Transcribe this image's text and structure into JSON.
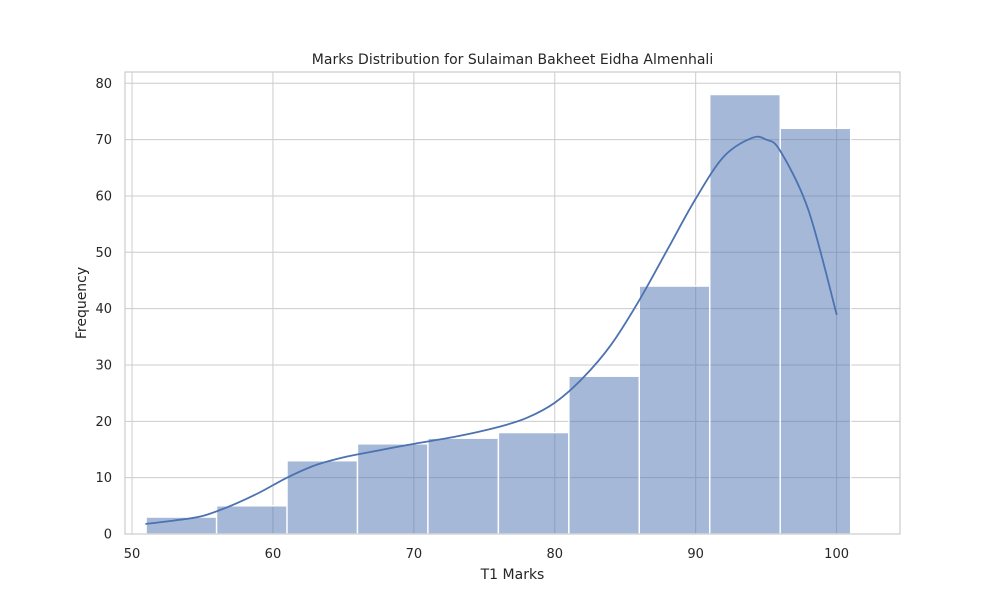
{
  "chart_data": {
    "type": "bar",
    "title": "Marks Distribution for Sulaiman Bakheet Eidha Almenhali",
    "xlabel": "T1 Marks",
    "ylabel": "Frequency",
    "xlim": [
      49.5,
      104.5
    ],
    "ylim": [
      0,
      82
    ],
    "x_ticks": [
      50,
      60,
      70,
      80,
      90,
      100
    ],
    "y_ticks": [
      0,
      10,
      20,
      30,
      40,
      50,
      60,
      70,
      80
    ],
    "grid": true,
    "bins": [
      {
        "start": 51,
        "end": 56,
        "count": 3
      },
      {
        "start": 56,
        "end": 61,
        "count": 5
      },
      {
        "start": 61,
        "end": 66,
        "count": 13
      },
      {
        "start": 66,
        "end": 71,
        "count": 16
      },
      {
        "start": 71,
        "end": 76,
        "count": 17
      },
      {
        "start": 76,
        "end": 81,
        "count": 18
      },
      {
        "start": 81,
        "end": 86,
        "count": 28
      },
      {
        "start": 86,
        "end": 91,
        "count": 44
      },
      {
        "start": 91,
        "end": 96,
        "count": 78
      },
      {
        "start": 96,
        "end": 101,
        "count": 72
      }
    ],
    "kde": {
      "x": [
        51,
        53,
        55,
        57,
        59,
        61,
        63,
        65,
        67,
        70,
        73,
        76,
        78,
        80,
        82,
        84,
        86,
        88,
        90,
        92,
        94,
        95,
        96,
        98,
        100
      ],
      "y": [
        1.8,
        2.4,
        3.2,
        5.0,
        7.3,
        10.0,
        12.2,
        13.6,
        14.6,
        16.0,
        17.3,
        19.0,
        20.6,
        23.3,
        27.7,
        33.6,
        41.5,
        50.5,
        59.5,
        67.0,
        70.3,
        70.0,
        68.0,
        57.5,
        39.0
      ]
    },
    "colors": {
      "bar_fill": "#4c72b0",
      "bar_opacity": 0.5,
      "kde_line": "#4c72b0"
    }
  }
}
